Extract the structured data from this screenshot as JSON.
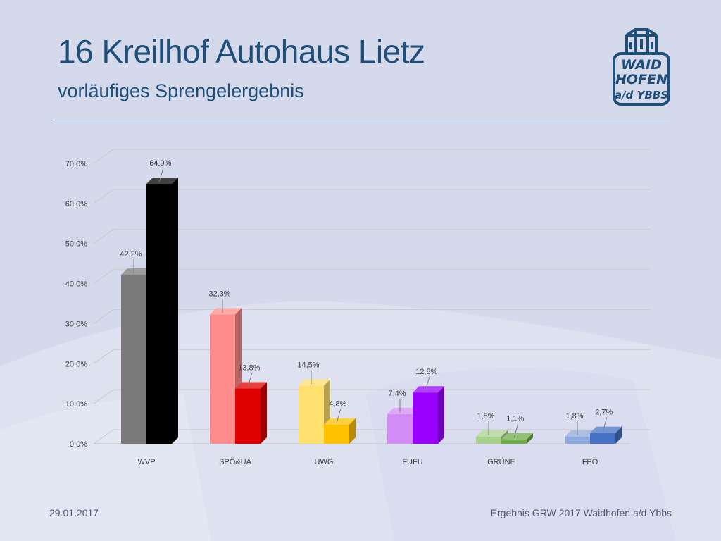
{
  "slide": {
    "title": "16 Kreilhof Autohaus Lietz",
    "subtitle": "vorläufiges Sprengelergebnis",
    "footer_date": "29.01.2017",
    "footer_right": "Ergebnis GRW 2017 Waidhofen a/d Ybbs",
    "logo": {
      "line1": "WAID",
      "line2": "HOFEN",
      "line3": "a/d YBBS",
      "icon": "castle-icon"
    }
  },
  "chart_data": {
    "type": "bar",
    "categories": [
      "WVP",
      "SPÖ&UA",
      "UWG",
      "FUFU",
      "GRÜNE",
      "FPÖ"
    ],
    "series": [
      {
        "values": [
          42.2,
          32.3,
          14.5,
          7.4,
          1.8,
          1.8
        ],
        "colors": [
          "#7a7a7a",
          "#ff8c8c",
          "#ffdf6e",
          "#d38cf5",
          "#a9d18e",
          "#8faadc"
        ]
      },
      {
        "values": [
          64.9,
          13.8,
          4.8,
          12.8,
          1.1,
          2.7
        ],
        "colors": [
          "#000000",
          "#e00000",
          "#ffc000",
          "#9900ff",
          "#70ad47",
          "#4472c4"
        ]
      }
    ],
    "data_labels": [
      [
        "42,2%",
        "32,3%",
        "14,5%",
        "7,4%",
        "1,8%",
        "1,8%"
      ],
      [
        "64,9%",
        "13,8%",
        "4,8%",
        "12,8%",
        "1,1%",
        "2,7%"
      ]
    ],
    "ytick_labels": [
      "0,0%",
      "10,0%",
      "20,0%",
      "30,0%",
      "40,0%",
      "50,0%",
      "60,0%",
      "70,0%"
    ],
    "ylim": [
      0,
      70
    ],
    "grid": true,
    "legend": "none"
  }
}
